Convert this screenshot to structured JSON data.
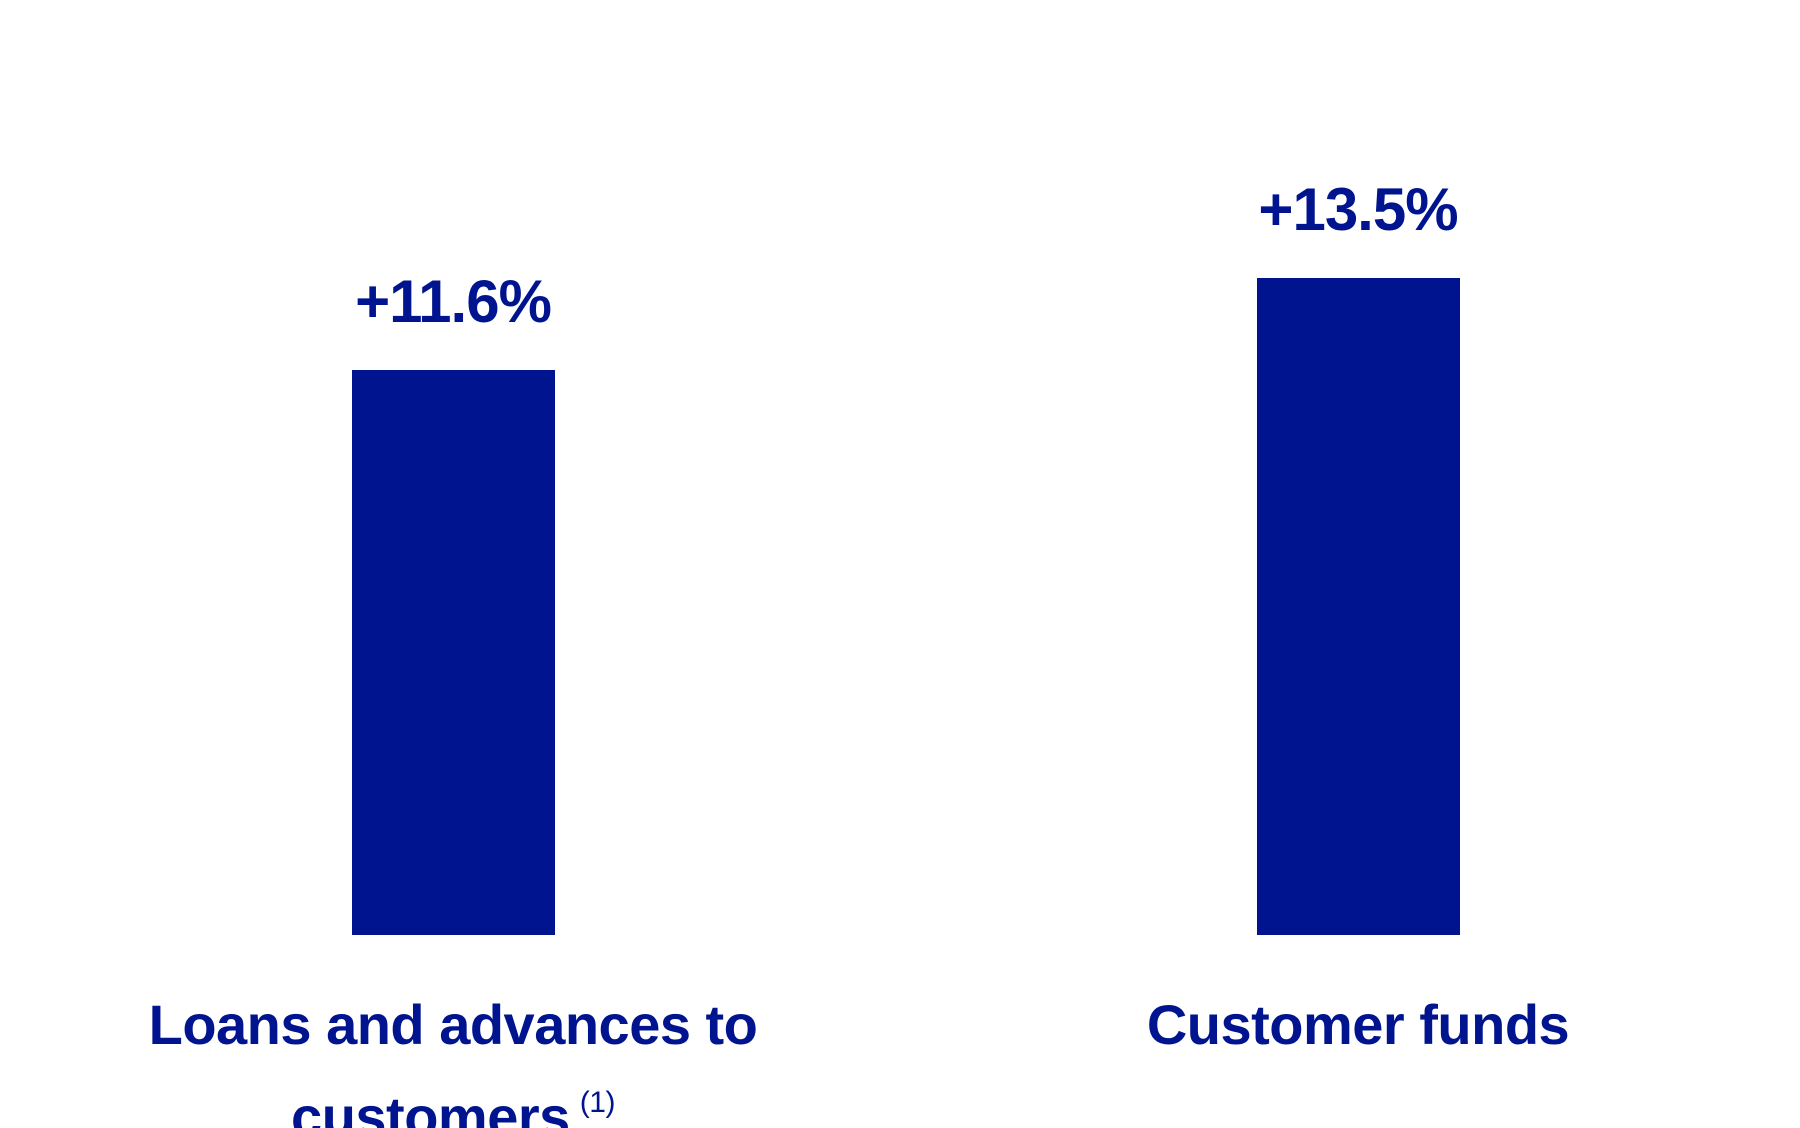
{
  "chart_data": {
    "type": "bar",
    "categories": [
      "Loans and advances to customers",
      "Customer funds"
    ],
    "category_notes": [
      "(1)",
      null
    ],
    "values": [
      11.6,
      13.5
    ],
    "value_labels": [
      "+11.6%",
      "+13.5%"
    ],
    "color": "#00148f"
  }
}
